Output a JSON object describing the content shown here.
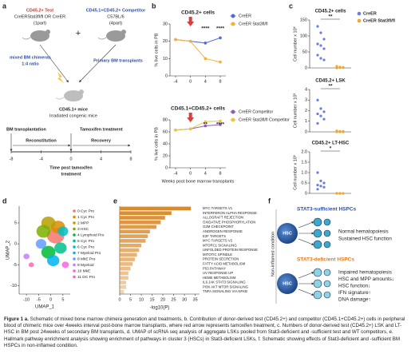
{
  "panels": [
    "a",
    "b",
    "c",
    "d",
    "e",
    "f"
  ],
  "schematic_a": {
    "test_label": "CD45.2+ Test",
    "test_genotype": "CreERStat3fl/fl OR CreER",
    "test_part": "(1part)",
    "plus": "+",
    "comp_label": "CD45.1+CD45.2+ Competitor",
    "comp_strain": "C57BL/6",
    "comp_part": "(4part)",
    "mix_label": "mixed BM chimeras",
    "mix_ratio": "1:4 ratio",
    "primary": "Primary BM transplants",
    "recipient": "CD45.1+ mice",
    "recipient_desc": "Irradiated congenic mice",
    "bm_tx": "BM transplantation",
    "tam": "Tamoxifen treatment",
    "recon": "Reconstitution",
    "recovery": "Recovery",
    "timeline_ticks": [
      -8,
      -4,
      0,
      4,
      8
    ],
    "timeline_label": "Time post tamoxifen",
    "timeline_label2": "treatment"
  },
  "chart_data": [
    {
      "type": "line",
      "title": "CD45.2+ cells",
      "ylabel": "% live cells in PB",
      "x": [
        -4,
        0,
        4,
        8
      ],
      "xlim": [
        -5.5,
        9.5
      ],
      "xticks": [
        -4,
        0,
        4,
        8
      ],
      "ylim": [
        0,
        30
      ],
      "yticks": [
        0,
        10,
        20,
        30
      ],
      "treatment_x": 0,
      "legend": "right",
      "series": [
        {
          "name": "CreER",
          "color": "#5468d4",
          "values": [
            21,
            20,
            19,
            22
          ]
        },
        {
          "name": "CreER Stat3fl/fl",
          "color": "#f2b13c",
          "values": [
            21,
            20,
            10,
            8
          ]
        }
      ],
      "annotations": [
        {
          "text": "****",
          "x": 4
        },
        {
          "text": "****",
          "x": 8
        }
      ]
    },
    {
      "type": "line",
      "title": "CD45.1+CD45.2+ cells",
      "ylabel": "% live cells in PB",
      "xlabel": "Weeks post bone marrow transplants",
      "x": [
        -4,
        0,
        4,
        8
      ],
      "xlim": [
        -5.5,
        9.5
      ],
      "xticks": [
        -4,
        0,
        4,
        8
      ],
      "ylim": [
        0,
        80
      ],
      "yticks": [
        0,
        20,
        40,
        60,
        80
      ],
      "treatment_x": 0,
      "legend": "right",
      "series": [
        {
          "name": "CreER Competitor",
          "color": "#8a5db5",
          "values": [
            63,
            65,
            70,
            72
          ]
        },
        {
          "name": "CreER Stat3fl/fl Competitor",
          "color": "#e6c640",
          "values": [
            63,
            65,
            77,
            78
          ]
        }
      ],
      "annotations": [
        {
          "text": "**",
          "x": 4
        },
        {
          "text": "****",
          "x": 8
        }
      ]
    },
    {
      "type": "strip",
      "title": "CD45.2+ cells",
      "ylabel": "Cell number x 10⁶",
      "ylim": [
        0,
        150
      ],
      "yticks": [
        0,
        50,
        100,
        150
      ],
      "legend": "right",
      "annotation": "**",
      "series": [
        {
          "name": "CreER",
          "color": "#6a7fdc",
          "values": [
            130,
            110,
            90,
            75,
            70,
            60,
            40,
            30,
            25
          ]
        },
        {
          "name": "CreER Stat3fl/fl",
          "color": "#f5a623",
          "values": [
            5,
            3,
            2,
            2,
            1,
            1,
            0
          ]
        }
      ]
    },
    {
      "type": "strip",
      "title": "CD45.2+ LSK",
      "ylabel": "Cell number x 10³",
      "ylim": [
        0,
        4
      ],
      "yticks": [
        0,
        1,
        2,
        3,
        4
      ],
      "annotation": "**",
      "series": [
        {
          "name": "CreER",
          "color": "#6a7fdc",
          "values": [
            3.0,
            2.2,
            1.9,
            1.7,
            1.5,
            1.2,
            0.8
          ]
        },
        {
          "name": "CreER Stat3fl/fl",
          "color": "#f5a623",
          "values": [
            0.1,
            0.05,
            0.05,
            0,
            0,
            0
          ]
        }
      ]
    },
    {
      "type": "strip",
      "title": "CD45.2+ LT-HSC",
      "ylabel": "Cell number x 10³",
      "ylim": [
        0,
        2
      ],
      "yticks": [
        0,
        0.5,
        {
          "value": 1,
          "label": "1.0"
        },
        1.5,
        {
          "value": 2,
          "label": "2.0"
        }
      ],
      "annotation": "*",
      "series": [
        {
          "name": "CreER",
          "color": "#6a7fdc",
          "values": [
            1.0,
            0.6,
            0.5,
            0.4,
            0.35,
            0.3,
            0.2
          ]
        },
        {
          "name": "CreER Stat3fl/fl",
          "color": "#f5a623",
          "values": [
            0,
            0,
            0,
            0,
            0
          ]
        }
      ]
    },
    {
      "type": "umap",
      "xlabel": "UMAP_1",
      "ylabel": "UMAP_2",
      "xlim": [
        -13,
        8
      ],
      "ylim": [
        -12,
        9
      ],
      "xticks": [
        -10,
        -5,
        0,
        5
      ],
      "yticks": [
        -10,
        -5,
        0,
        5
      ],
      "clusters": [
        {
          "label": "0 Cyc Pro",
          "color": "#F8766D",
          "x": 2,
          "y": 2
        },
        {
          "label": "1 Cyc Pro",
          "color": "#DE8C00",
          "x": 3,
          "y": 4
        },
        {
          "label": "2 MPP",
          "color": "#B79F00",
          "x": -1,
          "y": 5
        },
        {
          "label": "3 HSC",
          "color": "#7CAE00",
          "x": -3,
          "y": 3
        },
        {
          "label": "4 Lymphoid Pro",
          "color": "#00BA38",
          "x": -1,
          "y": -2
        },
        {
          "label": "5 Cyc Pro",
          "color": "#00C08B",
          "x": 4,
          "y": -1
        },
        {
          "label": "6 Cyc Pro",
          "color": "#00BFC4",
          "x": 5,
          "y": 3
        },
        {
          "label": "7 Myeloid Pro",
          "color": "#00B4F0",
          "x": 1,
          "y": -4
        },
        {
          "label": "8 MkE Pro",
          "color": "#619CFF",
          "x": -4,
          "y": 0
        },
        {
          "label": "9 Myeloid",
          "color": "#C77CFF",
          "x": -10,
          "y": -3
        },
        {
          "label": "10 MkE",
          "color": "#F564E3",
          "x": 6,
          "y": -5
        },
        {
          "label": "11 DC Pro",
          "color": "#FF64B0",
          "x": -8,
          "y": -5
        }
      ]
    },
    {
      "type": "barh",
      "xlabel": "-log10(P)",
      "xlim": [
        0,
        37
      ],
      "xticks": [
        0,
        5,
        10,
        15,
        20,
        25,
        30,
        35
      ],
      "color": "#d98a2b",
      "categories": [
        "MYC TARGETS V1",
        "INTERFERON ALPHA RESPONSE",
        "ALLOGRAFT REJECTION",
        "OXIDATIVE PHOSPHORYLATION",
        "G2M CHECKPOINT",
        "ANDROGEN RESPONSE",
        "E2F TARGETS",
        "MYC TARGETS V2",
        "MTORC1 SIGNALING",
        "UNFOLDED PROTEIN RESPONSE",
        "MITOTIC SPINDLE",
        "PROTEIN SECRETION",
        "FATTY ACID METABOLISM",
        "P53 PATHWAY",
        "UV RESPONSE UP",
        "HEME METABOLISM",
        "IL6 JAK STAT3 SIGNALING",
        "PI3K AKT MTOR SIGNALING",
        "TNFA SIGNALING VIA NFKB"
      ],
      "values": [
        33,
        24,
        21,
        19,
        17,
        14,
        13,
        12,
        10,
        9,
        8,
        7,
        6,
        5,
        4,
        4,
        3,
        3,
        2
      ]
    }
  ],
  "schematic_f": {
    "top_title": "STAT3-sufficient HSPCs",
    "top_lines": [
      "Normal hematopoiesis",
      "Sustained HSC function"
    ],
    "side": "Non-inflamed condition",
    "bottom_title": "STAT3-deficient HSPCs",
    "bottom_lines": [
      "Impaired hematopoiesis",
      "HSC and MPP amounts↓",
      "HSC function↓",
      "IFN signature↑",
      "DNA damage↑"
    ],
    "cell": "HSC"
  },
  "caption": {
    "lead": "Figure 1 a.",
    "text": " Schematic of mixed bone marrow chimera generation and treatments, b. Contribution of donor-derived test (CD45.2+) and competitor (CD45.1+CD45.2+) cells in peripheral blood of chimeric mice over 4weeks interval post-bone marrow transplants, where red arrow represents tamoxifen treatment, c. Numbers of donor-derived test (CD45.2+) LSK and LT-HSC in BM post 24weeks of secondary BM transplants, d. UMAP of scRNA seq analysis of aggregate LSKs pooled from Stat3-deficient and -sufficient test and WT competitors, e. Hallmark pathway enrichment analysis showing enrichment of pathways in cluster 3 (HSCs) in Stat3-deficient LSKs, f. Schematic showing effects of Stat3-deficient and -sufficient BM HSPCs in non-inflamed condition."
  }
}
